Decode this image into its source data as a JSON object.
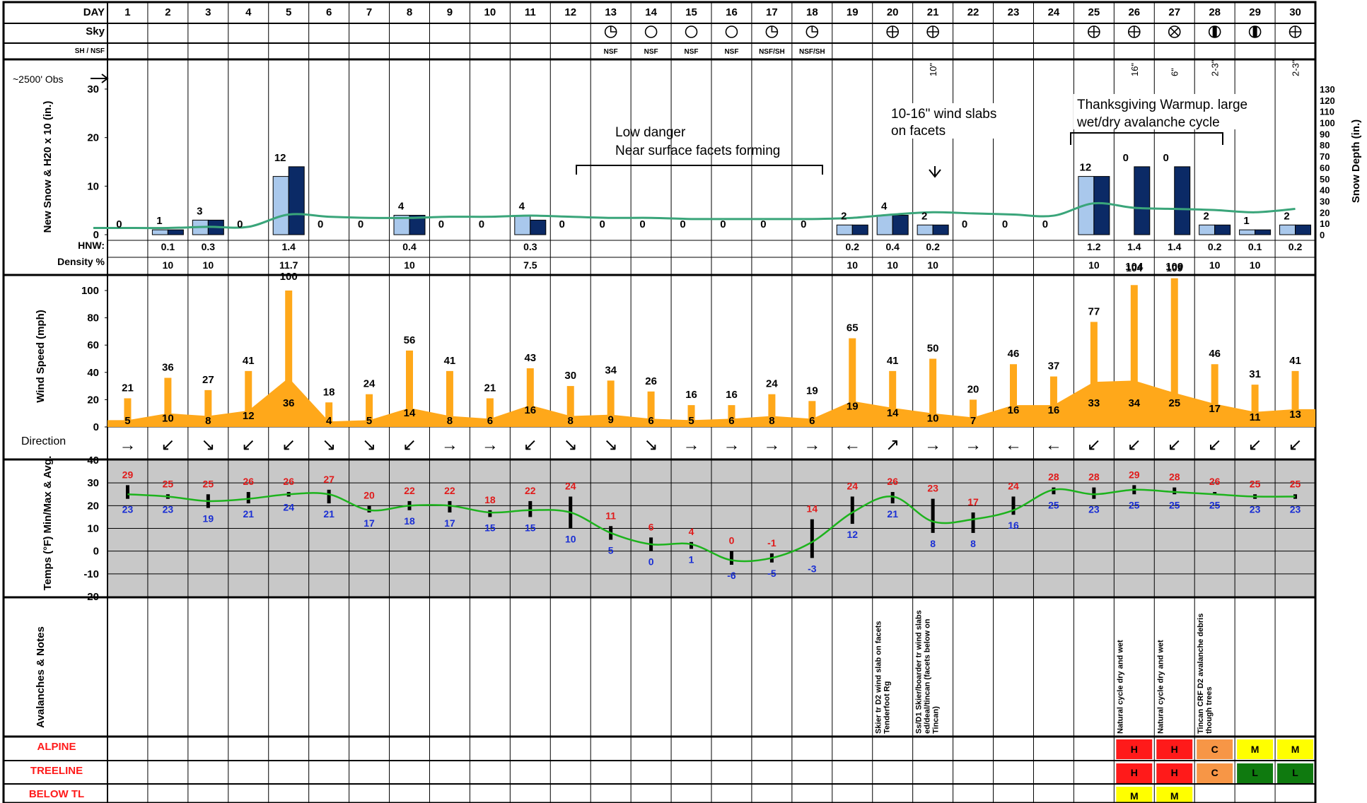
{
  "row_labels": {
    "day": "DAY",
    "sky": "Sky",
    "sh_nsf": "SH / NSF",
    "obs": "~2500' Obs",
    "snow_axis": "New Snow & H20 x 10 (in.)",
    "snow_depth_axis": "Snow Depth (in.)",
    "hnw": "HNW:",
    "density": "Density %",
    "wind_axis": "Wind Speed (mph)",
    "direction": "Direction",
    "temps_axis": "Temps (°F) Min/Max & Avg.",
    "notes_axis": "Avalanches & Notes",
    "alpine": "ALPINE",
    "treeline": "TREELINE",
    "below_tl": "BELOW TL"
  },
  "days": [
    "1",
    "2",
    "3",
    "4",
    "5",
    "6",
    "7",
    "8",
    "9",
    "10",
    "11",
    "12",
    "13",
    "14",
    "15",
    "16",
    "17",
    "18",
    "19",
    "20",
    "21",
    "22",
    "23",
    "24",
    "25",
    "26",
    "27",
    "28",
    "29",
    "30"
  ],
  "sky": [
    "",
    "",
    "",
    "",
    "",
    "",
    "",
    "",
    "",
    "",
    "",
    "",
    "scattered",
    "clear",
    "clear",
    "clear",
    "scattered",
    "scattered",
    "",
    "overcast",
    "overcast",
    "",
    "",
    "",
    "overcast",
    "overcast",
    "obscured",
    "broken",
    "broken",
    "overcast"
  ],
  "sh_nsf": [
    "",
    "",
    "",
    "",
    "",
    "",
    "",
    "",
    "",
    "",
    "",
    "",
    "NSF",
    "NSF",
    "NSF",
    "NSF",
    "NSF/SH",
    "NSF/SH",
    "",
    "",
    "",
    "",
    "",
    "",
    "",
    "",
    "",
    "",
    "",
    ""
  ],
  "chart_data": [
    {
      "type": "bar",
      "title": "",
      "ylabel": "New Snow & H20 x 10 (in.)",
      "ylim": [
        0,
        30
      ],
      "y_ticks": [
        "0",
        "10",
        "20",
        "30"
      ],
      "y2label": "Snow Depth (in.)",
      "y2lim": [
        0,
        130
      ],
      "y2_ticks": [
        "0",
        "10",
        "20",
        "30",
        "40",
        "50",
        "60",
        "70",
        "80",
        "90",
        "100",
        "110",
        "120",
        "130"
      ],
      "categories": [
        "1",
        "2",
        "3",
        "4",
        "5",
        "6",
        "7",
        "8",
        "9",
        "10",
        "11",
        "12",
        "13",
        "14",
        "15",
        "16",
        "17",
        "18",
        "19",
        "20",
        "21",
        "22",
        "23",
        "24",
        "25",
        "26",
        "27",
        "28",
        "29",
        "30"
      ],
      "series": [
        {
          "name": "New Snow",
          "color": "#a9c8ec",
          "values": [
            0,
            1,
            3,
            0,
            12,
            0,
            0,
            4,
            0,
            0,
            4,
            0,
            0,
            0,
            0,
            0,
            0,
            0,
            2,
            4,
            2,
            0,
            0,
            0,
            12,
            0,
            0,
            2,
            1,
            2
          ]
        },
        {
          "name": "H20 x 10",
          "color": "#0b2a66",
          "values": [
            0,
            1,
            3,
            0,
            14,
            0,
            0,
            4,
            0,
            0,
            3,
            0,
            0,
            0,
            0,
            0,
            0,
            0,
            2,
            4,
            2,
            0,
            0,
            0,
            12,
            14,
            14,
            2,
            1,
            2
          ]
        },
        {
          "name": "Snow Depth",
          "color": "#3aa57a",
          "values": [
            6,
            6,
            7,
            7,
            18,
            16,
            15,
            15,
            16,
            16,
            17,
            16,
            15,
            15,
            14,
            14,
            14,
            14,
            15,
            18,
            20,
            19,
            18,
            17,
            28,
            24,
            23,
            22,
            20,
            23
          ]
        }
      ],
      "snow_labels": [
        "0",
        "1",
        "3",
        "0",
        "12",
        "0",
        "0",
        "4",
        "0",
        "0",
        "4",
        "0",
        "0",
        "0",
        "0",
        "0",
        "0",
        "0",
        "2",
        "4",
        "2",
        "0",
        "0",
        "0",
        "12",
        "0",
        "0",
        "2",
        "1",
        "2"
      ],
      "rotated_labels": [
        "",
        "",
        "",
        "",
        "",
        "",
        "",
        "",
        "",
        "",
        "",
        "",
        "",
        "",
        "",
        "",
        "",
        "",
        "",
        "",
        "10\"",
        "",
        "",
        "",
        "",
        "16\"",
        "6\"",
        "2-3\"",
        "",
        "2-3\""
      ],
      "hnw": [
        "",
        "0.1",
        "0.3",
        "",
        "1.4",
        "",
        "",
        "0.4",
        "",
        "",
        "0.3",
        "",
        "",
        "",
        "",
        "",
        "",
        "",
        "0.2",
        "0.4",
        "0.2",
        "",
        "",
        "",
        "1.2",
        "1.4",
        "1.4",
        "0.2",
        "0.1",
        "0.2"
      ],
      "density": [
        "",
        "10",
        "10",
        "",
        "11.7",
        "",
        "",
        "10",
        "",
        "",
        "7.5",
        "",
        "",
        "",
        "",
        "",
        "",
        "",
        "10",
        "10",
        "10",
        "",
        "",
        "",
        "10",
        "104",
        "109",
        "10",
        "10",
        ""
      ],
      "annotations": [
        {
          "text": "Low danger",
          "text2": "Near surface facets forming"
        },
        {
          "text": "10-16\" wind slabs",
          "text2": "on facets"
        },
        {
          "text": "Thanksgiving Warmup. large",
          "text2": "wet/dry avalanche cycle"
        }
      ]
    },
    {
      "type": "bar",
      "title": "",
      "ylabel": "Wind Speed (mph)",
      "ylim": [
        0,
        100
      ],
      "y_ticks": [
        "0",
        "20",
        "40",
        "60",
        "80",
        "100"
      ],
      "categories": [
        "1",
        "2",
        "3",
        "4",
        "5",
        "6",
        "7",
        "8",
        "9",
        "10",
        "11",
        "12",
        "13",
        "14",
        "15",
        "16",
        "17",
        "18",
        "19",
        "20",
        "21",
        "22",
        "23",
        "24",
        "25",
        "26",
        "27",
        "28",
        "29",
        "30"
      ],
      "series": [
        {
          "name": "Max Wind",
          "color": "#ffa81a",
          "values": [
            21,
            36,
            27,
            41,
            100,
            18,
            24,
            56,
            41,
            21,
            43,
            30,
            34,
            26,
            16,
            16,
            24,
            19,
            65,
            41,
            50,
            20,
            46,
            37,
            77,
            104,
            109,
            46,
            31,
            41
          ]
        },
        {
          "name": "Avg Wind",
          "color": "#ffa81a",
          "values": [
            5,
            10,
            8,
            12,
            36,
            4,
            5,
            14,
            8,
            6,
            16,
            8,
            9,
            6,
            5,
            6,
            8,
            6,
            19,
            14,
            10,
            7,
            16,
            16,
            33,
            34,
            25,
            17,
            11,
            13
          ]
        }
      ],
      "max_labels": [
        "21",
        "36",
        "27",
        "41",
        "100",
        "18",
        "24",
        "56",
        "41",
        "21",
        "43",
        "30",
        "34",
        "26",
        "16",
        "16",
        "24",
        "19",
        "65",
        "41",
        "50",
        "20",
        "46",
        "37",
        "77",
        "104",
        "109",
        "46",
        "31",
        "41"
      ],
      "avg_labels": [
        "5",
        "10",
        "8",
        "12",
        "36",
        "4",
        "5",
        "14",
        "8",
        "6",
        "16",
        "8",
        "9",
        "6",
        "5",
        "6",
        "8",
        "6",
        "19",
        "14",
        "10",
        "7",
        "16",
        "16",
        "33",
        "34",
        "25",
        "17",
        "11",
        "13"
      ],
      "direction": [
        "→",
        "↙",
        "↘",
        "↙",
        "↙",
        "↘",
        "↘",
        "↙",
        "→",
        "→",
        "↙",
        "↘",
        "↘",
        "↘",
        "→",
        "→",
        "→",
        "→",
        "←",
        "↗",
        "→",
        "→",
        "←",
        "←",
        "↙",
        "↙",
        "↙",
        "↙",
        "↙",
        "↙"
      ]
    },
    {
      "type": "line",
      "title": "",
      "ylabel": "Temps (°F) Min/Max & Avg.",
      "ylim": [
        -20,
        40
      ],
      "y_ticks": [
        "-20",
        "-10",
        "0",
        "10",
        "20",
        "30",
        "40"
      ],
      "categories": [
        "1",
        "2",
        "3",
        "4",
        "5",
        "6",
        "7",
        "8",
        "9",
        "10",
        "11",
        "12",
        "13",
        "14",
        "15",
        "16",
        "17",
        "18",
        "19",
        "20",
        "21",
        "22",
        "23",
        "24",
        "25",
        "26",
        "27",
        "28",
        "29",
        "30"
      ],
      "series": [
        {
          "name": "Max",
          "color": "#e01b1b",
          "values": [
            29,
            25,
            25,
            26,
            26,
            27,
            20,
            22,
            22,
            18,
            22,
            24,
            11,
            6,
            4,
            0,
            -1,
            14,
            24,
            26,
            23,
            17,
            24,
            28,
            28,
            29,
            28,
            26,
            25,
            25
          ]
        },
        {
          "name": "Min",
          "color": "#1a2fd4",
          "values": [
            23,
            23,
            19,
            21,
            24,
            21,
            17,
            18,
            17,
            15,
            15,
            10,
            5,
            0,
            1,
            -6,
            -5,
            -3,
            12,
            21,
            8,
            8,
            16,
            25,
            23,
            25,
            25,
            25,
            23,
            23
          ]
        },
        {
          "name": "Avg",
          "color": "#1db31d",
          "values": [
            25,
            24,
            22,
            23,
            25,
            25,
            18,
            20,
            20,
            17,
            18,
            17,
            8,
            3,
            3,
            -4,
            -3,
            4,
            17,
            24,
            13,
            14,
            18,
            27,
            25,
            27,
            26,
            25,
            24,
            24
          ]
        }
      ],
      "max_labels": [
        "29",
        "25",
        "25",
        "26",
        "26",
        "27",
        "20",
        "22",
        "22",
        "18",
        "22",
        "24",
        "11",
        "6",
        "4",
        "0",
        "-1",
        "14",
        "24",
        "26",
        "23",
        "17",
        "24",
        "28",
        "28",
        "29",
        "28",
        "26",
        "25",
        "25"
      ],
      "min_labels": [
        "23",
        "23",
        "19",
        "21",
        "24",
        "21",
        "17",
        "18",
        "17",
        "15",
        "15",
        "10",
        "5",
        "0",
        "1",
        "-6",
        "-5",
        "-3",
        "12",
        "21",
        "8",
        "8",
        "16",
        "25",
        "23",
        "25",
        "25",
        "25",
        "23",
        "23"
      ]
    }
  ],
  "notes": [
    "",
    "",
    "",
    "",
    "",
    "",
    "",
    "",
    "",
    "",
    "",
    "",
    "",
    "",
    "",
    "",
    "",
    "",
    "",
    "Skier tr D2 wind slab on facets Tenderfoot Rg",
    "Ss/D1 Skier/boarder tr wind slabs ed/deal/tincan (facets below on Tincan)",
    "",
    "",
    "",
    "",
    "Natural cycle dry and wet",
    "Natural cycle dry and wet",
    "Tincan CRF D2 avalanche debris though trees",
    "",
    ""
  ],
  "danger": {
    "alpine": [
      "",
      "",
      "",
      "",
      "",
      "",
      "",
      "",
      "",
      "",
      "",
      "",
      "",
      "",
      "",
      "",
      "",
      "",
      "",
      "",
      "",
      "",
      "",
      "",
      "",
      "H",
      "H",
      "C",
      "M",
      "M"
    ],
    "treeline": [
      "",
      "",
      "",
      "",
      "",
      "",
      "",
      "",
      "",
      "",
      "",
      "",
      "",
      "",
      "",
      "",
      "",
      "",
      "",
      "",
      "",
      "",
      "",
      "",
      "",
      "H",
      "H",
      "C",
      "L",
      "L"
    ],
    "below_tl": [
      "",
      "",
      "",
      "",
      "",
      "",
      "",
      "",
      "",
      "",
      "",
      "",
      "",
      "",
      "",
      "",
      "",
      "",
      "",
      "",
      "",
      "",
      "",
      "",
      "",
      "M",
      "M",
      "",
      "",
      ""
    ]
  },
  "danger_colors": {
    "H": "#ff1a1a",
    "C": "#f79646",
    "M": "#ffff00",
    "L": "#0f7a0f"
  }
}
